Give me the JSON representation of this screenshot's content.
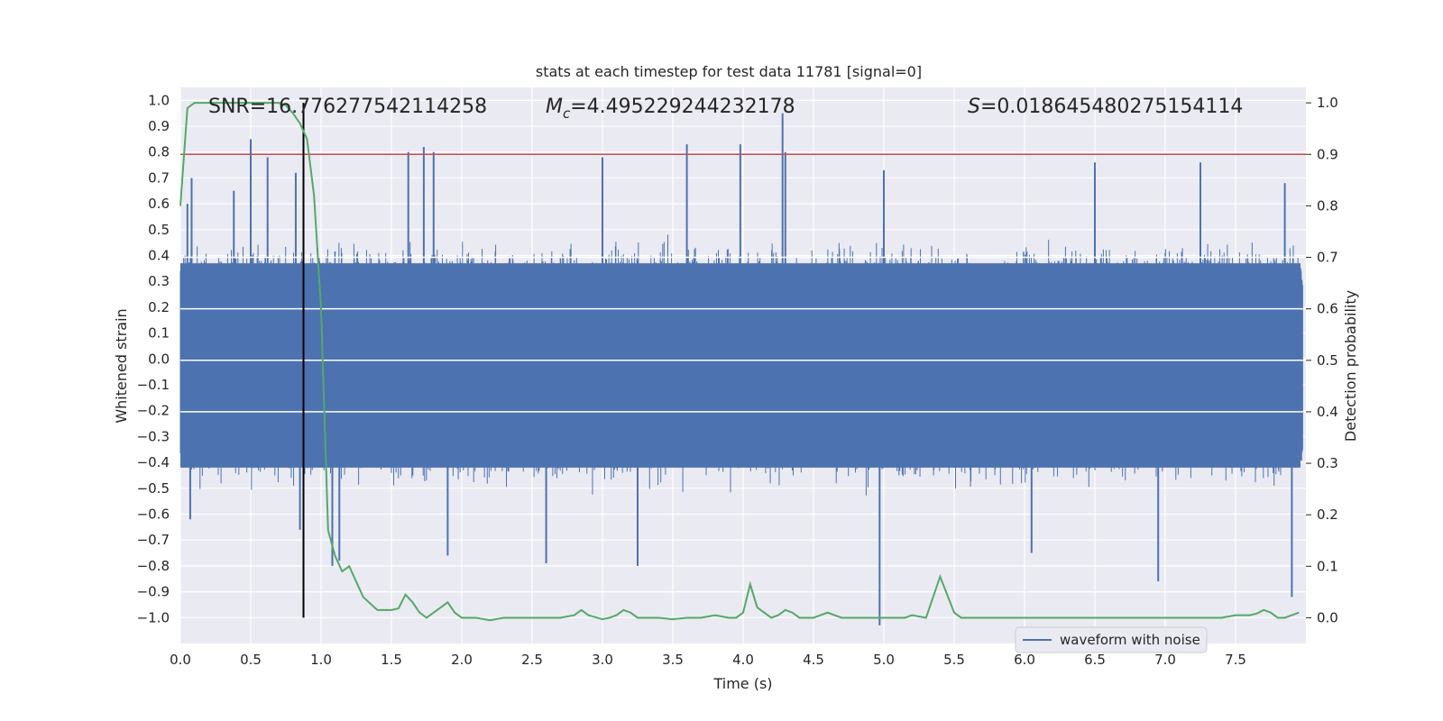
{
  "chart_data": {
    "type": "line",
    "title": "stats at each timestep for test data 11781 [signal=0]",
    "xlabel": "Time (s)",
    "ylabel_left": "Whitened strain",
    "ylabel_right": "Detection probability",
    "xlim": [
      0.0,
      8.0
    ],
    "ylim_left": [
      -1.1,
      1.05
    ],
    "ylim_right": [
      -0.05,
      1.03
    ],
    "x_ticks": [
      "0.0",
      "0.5",
      "1.0",
      "1.5",
      "2.0",
      "2.5",
      "3.0",
      "3.5",
      "4.0",
      "4.5",
      "5.0",
      "5.5",
      "6.0",
      "6.5",
      "7.0",
      "7.5"
    ],
    "y_left_ticks": [
      "1.0",
      "0.9",
      "0.8",
      "0.7",
      "0.6",
      "0.5",
      "0.4",
      "0.3",
      "0.2",
      "0.1",
      "0.0",
      "-0.1",
      "-0.2",
      "-0.3",
      "-0.4",
      "-0.5",
      "-0.6",
      "-0.7",
      "-0.8",
      "-0.9",
      "-1.0"
    ],
    "y_right_ticks": [
      "1.0",
      "0.9",
      "0.8",
      "0.7",
      "0.6",
      "0.5",
      "0.4",
      "0.3",
      "0.2",
      "0.1",
      "0.0"
    ],
    "grid": true,
    "legend": {
      "position": "lower-right",
      "entries": [
        "waveform with noise"
      ]
    },
    "annotations": {
      "snr": "SNR=16.776277542114258",
      "mc_symbol": "M",
      "mc_sub": "c",
      "mc_value": "=4.495229244232178",
      "s_symbol": "S",
      "s_value": "=0.018645480275154114"
    },
    "threshold_right": 0.9,
    "marker_time": 0.875,
    "waveform": {
      "name": "waveform with noise",
      "color": "#4c72b0",
      "description_note": "dense noise spanning roughly -0.45..0.4 with spikes",
      "peaks_positive": [
        [
          0.05,
          0.6
        ],
        [
          0.08,
          0.7
        ],
        [
          0.38,
          0.65
        ],
        [
          0.5,
          0.85
        ],
        [
          0.62,
          0.78
        ],
        [
          0.82,
          0.72
        ],
        [
          1.62,
          0.8
        ],
        [
          1.73,
          0.82
        ],
        [
          1.8,
          0.8
        ],
        [
          3.0,
          0.78
        ],
        [
          3.6,
          0.83
        ],
        [
          3.98,
          0.83
        ],
        [
          4.28,
          0.95
        ],
        [
          4.3,
          0.8
        ],
        [
          5.0,
          0.73
        ],
        [
          6.5,
          0.76
        ],
        [
          7.25,
          0.76
        ],
        [
          7.85,
          0.68
        ]
      ],
      "peaks_negative": [
        [
          0.07,
          -0.62
        ],
        [
          0.85,
          -0.66
        ],
        [
          1.08,
          -0.8
        ],
        [
          1.13,
          -0.78
        ],
        [
          1.9,
          -0.76
        ],
        [
          2.6,
          -0.79
        ],
        [
          3.25,
          -0.8
        ],
        [
          4.97,
          -1.03
        ],
        [
          6.05,
          -0.75
        ],
        [
          6.95,
          -0.86
        ],
        [
          7.9,
          -0.92
        ]
      ]
    },
    "detection_probability": {
      "color": "#55a868",
      "x": [
        0.0,
        0.05,
        0.1,
        0.2,
        0.3,
        0.4,
        0.5,
        0.6,
        0.7,
        0.75,
        0.8,
        0.85,
        0.9,
        0.95,
        1.0,
        1.05,
        1.1,
        1.15,
        1.2,
        1.25,
        1.3,
        1.4,
        1.5,
        1.55,
        1.6,
        1.65,
        1.7,
        1.75,
        1.8,
        1.85,
        1.9,
        1.95,
        2.0,
        2.1,
        2.2,
        2.3,
        2.4,
        2.5,
        2.6,
        2.7,
        2.8,
        2.85,
        2.9,
        3.0,
        3.05,
        3.1,
        3.15,
        3.2,
        3.25,
        3.3,
        3.4,
        3.5,
        3.6,
        3.7,
        3.8,
        3.9,
        3.95,
        4.0,
        4.05,
        4.1,
        4.15,
        4.2,
        4.25,
        4.3,
        4.35,
        4.4,
        4.45,
        4.5,
        4.6,
        4.7,
        4.75,
        4.8,
        4.9,
        5.0,
        5.1,
        5.15,
        5.2,
        5.3,
        5.4,
        5.45,
        5.5,
        5.55,
        5.6,
        5.65,
        5.7,
        5.8,
        5.9,
        6.0,
        6.1,
        6.2,
        6.3,
        6.4,
        6.5,
        6.6,
        6.7,
        6.8,
        6.9,
        7.0,
        7.1,
        7.2,
        7.3,
        7.4,
        7.5,
        7.55,
        7.6,
        7.65,
        7.7,
        7.75,
        7.8,
        7.85,
        7.9,
        7.95
      ],
      "y": [
        0.8,
        0.99,
        1.0,
        1.0,
        1.0,
        1.0,
        1.0,
        1.0,
        1.0,
        0.995,
        0.98,
        0.96,
        0.93,
        0.82,
        0.6,
        0.17,
        0.12,
        0.09,
        0.1,
        0.07,
        0.04,
        0.015,
        0.015,
        0.018,
        0.045,
        0.03,
        0.01,
        0.0,
        0.01,
        0.02,
        0.03,
        0.01,
        0.0,
        0.0,
        -0.005,
        0.0,
        0.0,
        0.0,
        0.0,
        0.0,
        0.005,
        0.015,
        0.005,
        -0.003,
        0.0,
        0.005,
        0.015,
        0.01,
        0.0,
        0.0,
        0.0,
        -0.003,
        0.0,
        0.0,
        0.005,
        0.0,
        0.0,
        0.01,
        0.065,
        0.02,
        0.01,
        0.0,
        0.005,
        0.015,
        0.01,
        0.0,
        0.0,
        0.0,
        0.01,
        0.0,
        0.0,
        0.0,
        0.0,
        0.0,
        0.0,
        0.0,
        0.005,
        0.0,
        0.08,
        0.045,
        0.01,
        0.0,
        0.0,
        0.0,
        0.0,
        0.0,
        0.0,
        0.0,
        0.0,
        0.0,
        0.0,
        0.0,
        0.0,
        0.0,
        0.0,
        0.0,
        0.0,
        0.0,
        0.0,
        0.0,
        0.0,
        0.0,
        0.005,
        0.005,
        0.005,
        0.008,
        0.015,
        0.01,
        0.0,
        0.0,
        0.005,
        0.01
      ]
    }
  }
}
